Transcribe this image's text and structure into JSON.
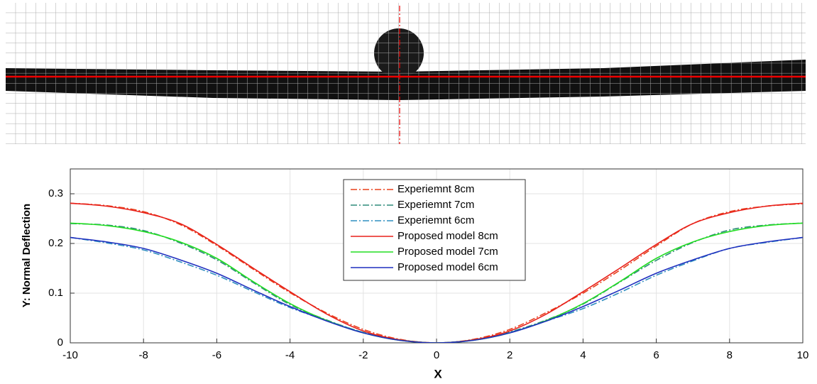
{
  "chart_data": {
    "type": "line",
    "xlabel": "X",
    "ylabel": "Y: Normal Deflection",
    "x": [
      -10,
      -9,
      -8,
      -7,
      -6,
      -5,
      -4,
      -3,
      -2,
      -1,
      0,
      1,
      2,
      3,
      4,
      5,
      6,
      7,
      8,
      9,
      10
    ],
    "series": [
      {
        "name": "Experiemnt 8cm",
        "color": "#e8401c",
        "linestyle": "dashdot",
        "values": [
          0.281,
          0.276,
          0.264,
          0.238,
          0.196,
          0.148,
          0.101,
          0.06,
          0.027,
          0.007,
          0,
          0.007,
          0.027,
          0.061,
          0.1,
          0.146,
          0.195,
          0.24,
          0.264,
          0.275,
          0.28
        ]
      },
      {
        "name": "Experiemnt 7cm",
        "color": "#2e8b7a",
        "linestyle": "dashdot",
        "values": [
          0.24,
          0.237,
          0.226,
          0.201,
          0.167,
          0.121,
          0.077,
          0.046,
          0.021,
          0.006,
          0,
          0.006,
          0.022,
          0.046,
          0.078,
          0.122,
          0.166,
          0.202,
          0.227,
          0.237,
          0.241
        ]
      },
      {
        "name": "Experiemnt 6cm",
        "color": "#2f8fc0",
        "linestyle": "dashdot",
        "values": [
          0.212,
          0.201,
          0.187,
          0.163,
          0.136,
          0.103,
          0.071,
          0.045,
          0.021,
          0.006,
          0,
          0.006,
          0.021,
          0.044,
          0.069,
          0.101,
          0.136,
          0.165,
          0.19,
          0.202,
          0.212
        ]
      },
      {
        "name": "Proposed model 8cm",
        "color": "#e8201a",
        "linestyle": "solid",
        "values": [
          0.281,
          0.275,
          0.262,
          0.24,
          0.198,
          0.15,
          0.103,
          0.058,
          0.024,
          0.006,
          0,
          0.006,
          0.024,
          0.058,
          0.103,
          0.15,
          0.198,
          0.24,
          0.262,
          0.275,
          0.281
        ]
      },
      {
        "name": "Proposed model 7cm",
        "color": "#22dd22",
        "linestyle": "solid",
        "values": [
          0.241,
          0.236,
          0.224,
          0.203,
          0.17,
          0.123,
          0.079,
          0.045,
          0.02,
          0.005,
          0,
          0.005,
          0.02,
          0.045,
          0.079,
          0.123,
          0.17,
          0.203,
          0.224,
          0.236,
          0.241
        ]
      },
      {
        "name": "Proposed model 6cm",
        "color": "#1f2fbf",
        "linestyle": "solid",
        "values": [
          0.212,
          0.203,
          0.19,
          0.167,
          0.14,
          0.106,
          0.073,
          0.044,
          0.02,
          0.005,
          0,
          0.005,
          0.02,
          0.044,
          0.073,
          0.106,
          0.14,
          0.167,
          0.19,
          0.203,
          0.212
        ]
      }
    ],
    "xlim": [
      -10,
      10
    ],
    "xticks": [
      -10,
      -8,
      -6,
      -4,
      -2,
      0,
      2,
      4,
      6,
      8,
      10
    ],
    "ylim": [
      0,
      0.35
    ],
    "yticks": [
      0,
      0.1,
      0.2,
      0.3
    ],
    "grid": true,
    "legend": "top"
  }
}
